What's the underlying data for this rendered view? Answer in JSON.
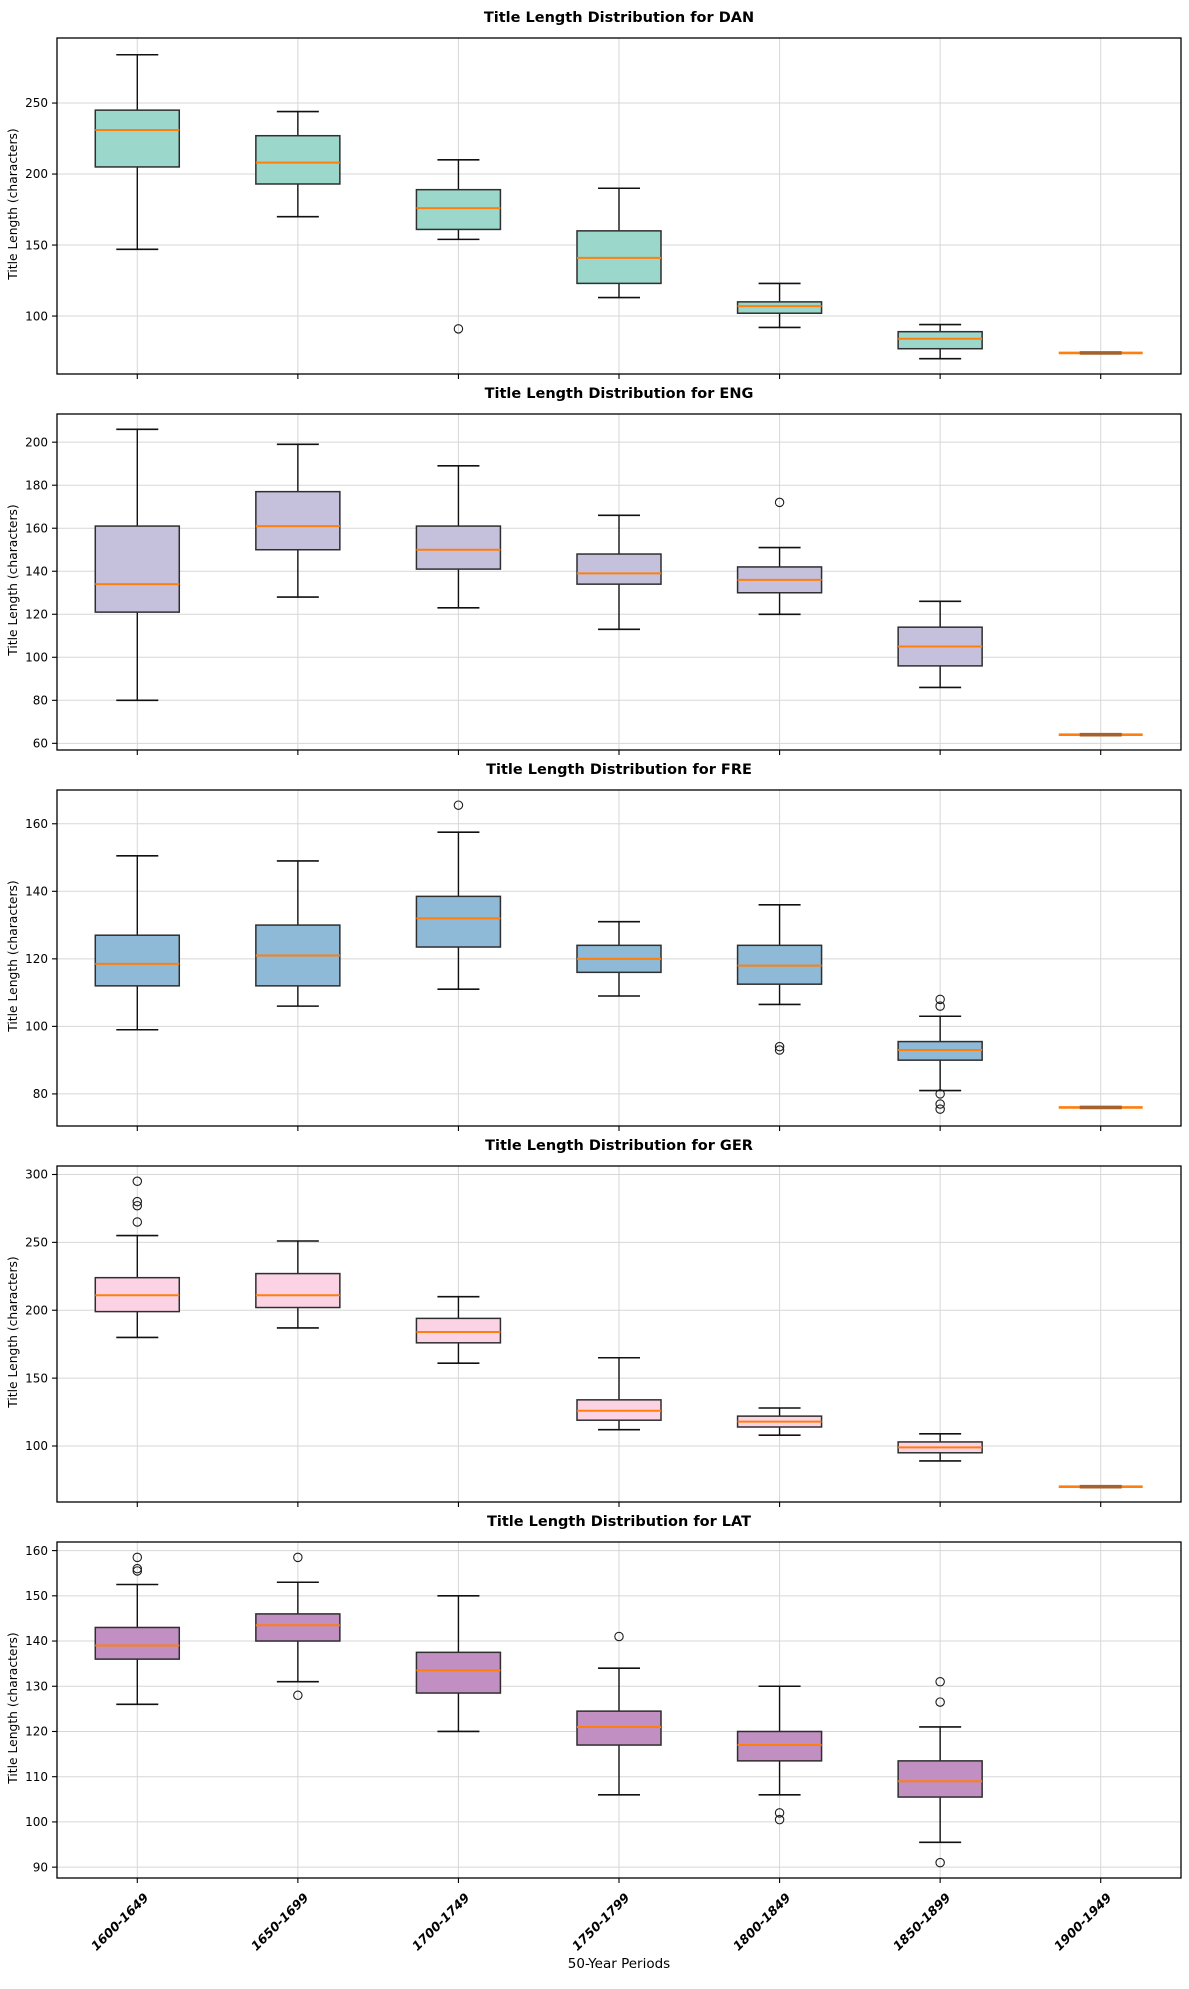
{
  "figure": {
    "xlabel": "50-Year Periods"
  },
  "chart_data": [
    {
      "type": "boxplot",
      "title": "Title Length Distribution for DAN",
      "ylabel": "Title Length (characters)",
      "categories": [
        "1600-1649",
        "1650-1699",
        "1700-1749",
        "1750-1799",
        "1800-1849",
        "1850-1899",
        "1900-1949"
      ],
      "yticks": [
        100,
        150,
        200,
        250
      ],
      "ylim": [
        59.2,
        295.8
      ],
      "grid": true,
      "colors": {
        "box_fill": "#9bd7ca",
        "box_edge": "#2f2f2f",
        "median": "#ff7f0e",
        "whisker": "#111111",
        "flat_center": "#a5622d"
      },
      "boxes": [
        {
          "whislo": 147,
          "q1": 205,
          "med": 231,
          "q3": 245,
          "whishi": 284,
          "outliers": []
        },
        {
          "whislo": 170,
          "q1": 193,
          "med": 208,
          "q3": 227,
          "whishi": 244,
          "outliers": []
        },
        {
          "whislo": 154,
          "q1": 161,
          "med": 176,
          "q3": 189,
          "whishi": 210,
          "outliers": [
            91
          ]
        },
        {
          "whislo": 113,
          "q1": 123,
          "med": 141,
          "q3": 160,
          "whishi": 190,
          "outliers": []
        },
        {
          "whislo": 92,
          "q1": 102,
          "med": 107,
          "q3": 110,
          "whishi": 123,
          "outliers": []
        },
        {
          "whislo": 70,
          "q1": 77,
          "med": 84,
          "q3": 89,
          "whishi": 94,
          "outliers": []
        },
        {
          "whislo": 74,
          "q1": 74,
          "med": 74,
          "q3": 74,
          "whishi": 74,
          "outliers": []
        }
      ]
    },
    {
      "type": "boxplot",
      "title": "Title Length Distribution for ENG",
      "ylabel": "Title Length (characters)",
      "categories": [
        "1600-1649",
        "1650-1699",
        "1700-1749",
        "1750-1799",
        "1800-1849",
        "1850-1899",
        "1900-1949"
      ],
      "yticks": [
        60,
        80,
        100,
        120,
        140,
        160,
        180,
        200
      ],
      "ylim": [
        56.9,
        213.1
      ],
      "grid": true,
      "colors": {
        "box_fill": "#c5c1dd",
        "box_edge": "#2f2f2f",
        "median": "#ff7f0e",
        "whisker": "#111111",
        "flat_center": "#a5622d"
      },
      "boxes": [
        {
          "whislo": 80,
          "q1": 121,
          "med": 134,
          "q3": 161,
          "whishi": 206,
          "outliers": []
        },
        {
          "whislo": 128,
          "q1": 150,
          "med": 161,
          "q3": 177,
          "whishi": 199,
          "outliers": []
        },
        {
          "whislo": 123,
          "q1": 141,
          "med": 150,
          "q3": 161,
          "whishi": 189,
          "outliers": []
        },
        {
          "whislo": 113,
          "q1": 134,
          "med": 139,
          "q3": 148,
          "whishi": 166,
          "outliers": []
        },
        {
          "whislo": 120,
          "q1": 130,
          "med": 136,
          "q3": 142,
          "whishi": 151,
          "outliers": [
            172
          ]
        },
        {
          "whislo": 86,
          "q1": 96,
          "med": 105,
          "q3": 114,
          "whishi": 126,
          "outliers": []
        },
        {
          "whislo": 64,
          "q1": 64,
          "med": 64,
          "q3": 64,
          "whishi": 64,
          "outliers": []
        }
      ]
    },
    {
      "type": "boxplot",
      "title": "Title Length Distribution for FRE",
      "ylabel": "Title Length (characters)",
      "categories": [
        "1600-1649",
        "1650-1699",
        "1700-1749",
        "1750-1799",
        "1800-1849",
        "1850-1899",
        "1900-1949"
      ],
      "yticks": [
        80,
        100,
        120,
        140,
        160
      ],
      "ylim": [
        70.5,
        170
      ],
      "grid": true,
      "colors": {
        "box_fill": "#8fbad7",
        "box_edge": "#2f2f2f",
        "median": "#ff7f0e",
        "whisker": "#111111",
        "flat_center": "#a5622d"
      },
      "boxes": [
        {
          "whislo": 99,
          "q1": 112,
          "med": 118.5,
          "q3": 127,
          "whishi": 150.5,
          "outliers": []
        },
        {
          "whislo": 106,
          "q1": 112,
          "med": 121,
          "q3": 130,
          "whishi": 149,
          "outliers": []
        },
        {
          "whislo": 111,
          "q1": 123.5,
          "med": 132,
          "q3": 138.5,
          "whishi": 157.5,
          "outliers": [
            165.5
          ]
        },
        {
          "whislo": 109,
          "q1": 116,
          "med": 120,
          "q3": 124,
          "whishi": 131,
          "outliers": []
        },
        {
          "whislo": 106.5,
          "q1": 112.5,
          "med": 118,
          "q3": 124,
          "whishi": 136,
          "outliers": [
            94,
            93
          ]
        },
        {
          "whislo": 81,
          "q1": 90,
          "med": 93,
          "q3": 95.5,
          "whishi": 103,
          "outliers": [
            108,
            106,
            80,
            77,
            75.5
          ]
        },
        {
          "whislo": 76,
          "q1": 76,
          "med": 76,
          "q3": 76,
          "whishi": 76,
          "outliers": []
        }
      ]
    },
    {
      "type": "boxplot",
      "title": "Title Length Distribution for GER",
      "ylabel": "Title Length (characters)",
      "categories": [
        "1600-1649",
        "1650-1699",
        "1700-1749",
        "1750-1799",
        "1800-1849",
        "1850-1899",
        "1900-1949"
      ],
      "yticks": [
        100,
        150,
        200,
        250,
        300
      ],
      "ylim": [
        58.75,
        306.25
      ],
      "grid": true,
      "colors": {
        "box_fill": "#fcd2e5",
        "box_edge": "#2f2f2f",
        "median": "#ff7f0e",
        "whisker": "#111111",
        "flat_center": "#a5622d"
      },
      "boxes": [
        {
          "whislo": 180,
          "q1": 199,
          "med": 211,
          "q3": 224,
          "whishi": 255,
          "outliers": [
            265,
            277,
            280,
            295
          ]
        },
        {
          "whislo": 187,
          "q1": 202,
          "med": 211,
          "q3": 227,
          "whishi": 251,
          "outliers": []
        },
        {
          "whislo": 161,
          "q1": 176,
          "med": 184,
          "q3": 194,
          "whishi": 210,
          "outliers": []
        },
        {
          "whislo": 112,
          "q1": 119,
          "med": 126,
          "q3": 134,
          "whishi": 165,
          "outliers": []
        },
        {
          "whislo": 108,
          "q1": 114,
          "med": 118,
          "q3": 122,
          "whishi": 128,
          "outliers": []
        },
        {
          "whislo": 89,
          "q1": 95,
          "med": 99,
          "q3": 103,
          "whishi": 109,
          "outliers": []
        },
        {
          "whislo": 70,
          "q1": 70,
          "med": 70,
          "q3": 70,
          "whishi": 70,
          "outliers": []
        }
      ]
    },
    {
      "type": "boxplot",
      "title": "Title Length Distribution for LAT",
      "ylabel": "Title Length (characters)",
      "categories": [
        "1600-1649",
        "1650-1699",
        "1700-1749",
        "1750-1799",
        "1800-1849",
        "1850-1899",
        "1900-1949"
      ],
      "yticks": [
        90,
        100,
        110,
        120,
        130,
        140,
        150,
        160
      ],
      "ylim": [
        87.6,
        161.9
      ],
      "grid": true,
      "colors": {
        "box_fill": "#c28fc3",
        "box_edge": "#2f2f2f",
        "median": "#ff7f0e",
        "whisker": "#111111",
        "flat_center": "#a5622d"
      },
      "boxes": [
        {
          "whislo": 126,
          "q1": 136,
          "med": 139,
          "q3": 143,
          "whishi": 152.5,
          "outliers": [
            155.5,
            156,
            158.5
          ]
        },
        {
          "whislo": 131,
          "q1": 140,
          "med": 143.5,
          "q3": 146,
          "whishi": 153,
          "outliers": [
            158.5,
            128
          ]
        },
        {
          "whislo": 120,
          "q1": 128.5,
          "med": 133.5,
          "q3": 137.5,
          "whishi": 150,
          "outliers": []
        },
        {
          "whislo": 106,
          "q1": 117,
          "med": 121,
          "q3": 124.5,
          "whishi": 134,
          "outliers": [
            141
          ]
        },
        {
          "whislo": 106,
          "q1": 113.5,
          "med": 117,
          "q3": 120,
          "whishi": 130,
          "outliers": [
            102,
            100.5
          ]
        },
        {
          "whislo": 95.5,
          "q1": 105.5,
          "med": 109,
          "q3": 113.5,
          "whishi": 121,
          "outliers": [
            131,
            126.5,
            91
          ]
        },
        null
      ]
    }
  ]
}
